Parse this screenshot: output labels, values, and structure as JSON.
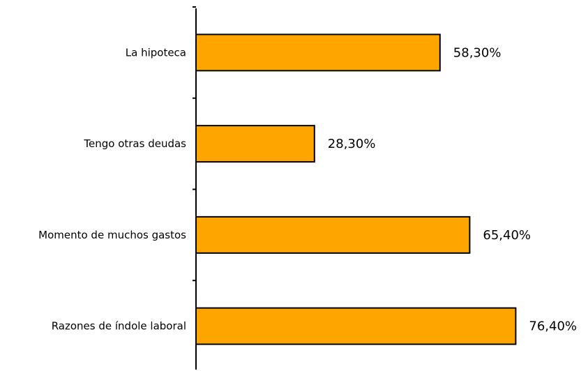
{
  "chart_data": {
    "type": "bar",
    "orientation": "horizontal",
    "categories": [
      "La hipoteca",
      "Tengo otras deudas",
      "Momento de muchos gastos",
      "Razones de índole laboral"
    ],
    "values": [
      58.3,
      28.3,
      65.4,
      76.4
    ],
    "value_labels": [
      "58,30%",
      "28,30%",
      "65,40%",
      "76,40%"
    ],
    "title": "",
    "xlabel": "",
    "ylabel": "",
    "xlim": [
      0,
      100
    ],
    "grid": false,
    "legend": "none",
    "bar_color": "#FFA500",
    "bar_edge_color": "#000000"
  }
}
